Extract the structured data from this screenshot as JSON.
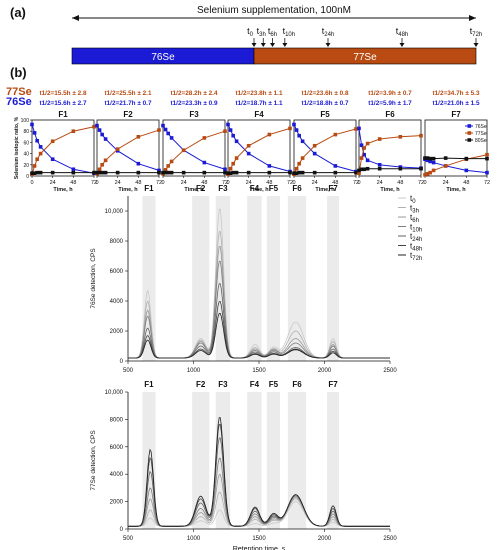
{
  "panel_a_label": "(a)",
  "panel_b_label": "(b)",
  "supplementation": {
    "title": "Selenium supplementation, 100nM",
    "bar_left_label": "76Se",
    "bar_right_label": "77Se",
    "colors": {
      "left": "#1b1bd6",
      "right": "#b84a12"
    },
    "timepoints": [
      {
        "base": "t",
        "sub": "0"
      },
      {
        "base": "t",
        "sub": "3h"
      },
      {
        "base": "t",
        "sub": "6h"
      },
      {
        "base": "t",
        "sub": "10h"
      },
      {
        "base": "t",
        "sub": "24h"
      },
      {
        "base": "t",
        "sub": "48h"
      },
      {
        "base": "t",
        "sub": "72h"
      }
    ]
  },
  "halflife": {
    "row_77_label": "77Se",
    "row_76_label": "76Se",
    "colors": {
      "se77": "#b84a12",
      "se76": "#1b1bd6"
    },
    "values_77": [
      "t1/2=15.5h ± 2.8",
      "t1/2=25.5h ± 2.1",
      "t1/2=28.2h ± 2.4",
      "t1/2=23.8h ± 1.1",
      "t1/2=23.6h ± 0.8",
      "t1/2=3.9h ± 0.7",
      "t1/2=34.7h ± 5.3"
    ],
    "values_76": [
      "t1/2=15.6h ± 2.7",
      "t1/2=21.7h ± 0.7",
      "t1/2=23.3h ± 0.9",
      "t1/2=18.7h ± 1.1",
      "t1/2=18.8h ± 0.7",
      "t1/2=5.9h ± 1.7",
      "t1/2=21.0h ± 1.5"
    ]
  },
  "chart_data": [
    {
      "type": "line",
      "ylabel": "Selenium isotopic ratio, %",
      "xlabel": "Time, h",
      "xticks": [
        0,
        24,
        48,
        72
      ],
      "ylim": [
        0,
        100
      ],
      "yticks": [
        0,
        20,
        40,
        60,
        80,
        100
      ],
      "x": [
        0,
        3,
        6,
        10,
        24,
        48,
        72
      ],
      "legend": [
        "76Se",
        "77Se",
        "80Se"
      ],
      "series_colors": [
        "#1b1bd6",
        "#b84a12",
        "#111111"
      ],
      "panels": [
        {
          "title": "F1",
          "series": [
            {
              "values": [
                92,
                77,
                63,
                52,
                30,
                12,
                5
              ]
            },
            {
              "values": [
                3,
                18,
                30,
                40,
                62,
                80,
                88
              ]
            },
            {
              "values": [
                5,
                5,
                6,
                6,
                6,
                6,
                6
              ]
            }
          ]
        },
        {
          "title": "F2",
          "series": [
            {
              "values": [
                90,
                82,
                74,
                66,
                45,
                22,
                10
              ]
            },
            {
              "values": [
                4,
                12,
                20,
                28,
                48,
                70,
                82
              ]
            },
            {
              "values": [
                6,
                6,
                6,
                6,
                6,
                6,
                6
              ]
            }
          ]
        },
        {
          "title": "F3",
          "series": [
            {
              "values": [
                90,
                83,
                76,
                68,
                46,
                24,
                12
              ]
            },
            {
              "values": [
                4,
                11,
                18,
                26,
                46,
                68,
                80
              ]
            },
            {
              "values": [
                6,
                6,
                6,
                6,
                6,
                6,
                6
              ]
            }
          ]
        },
        {
          "title": "F4",
          "series": [
            {
              "values": [
                92,
                82,
                72,
                62,
                40,
                18,
                8
              ]
            },
            {
              "values": [
                3,
                13,
                22,
                32,
                54,
                74,
                85
              ]
            },
            {
              "values": [
                5,
                5,
                6,
                6,
                6,
                6,
                6
              ]
            }
          ]
        },
        {
          "title": "F5",
          "series": [
            {
              "values": [
                92,
                82,
                72,
                62,
                40,
                18,
                8
              ]
            },
            {
              "values": [
                3,
                13,
                22,
                32,
                54,
                74,
                84
              ]
            },
            {
              "values": [
                5,
                5,
                6,
                6,
                6,
                6,
                6
              ]
            }
          ]
        },
        {
          "title": "F6",
          "series": [
            {
              "values": [
                85,
                55,
                38,
                28,
                20,
                16,
                14
              ]
            },
            {
              "values": [
                5,
                32,
                50,
                58,
                66,
                70,
                72
              ]
            },
            {
              "values": [
                10,
                12,
                12,
                13,
                13,
                13,
                13
              ]
            }
          ]
        },
        {
          "title": "F7",
          "series": [
            {
              "values": [
                30,
                28,
                26,
                24,
                18,
                10,
                6
              ]
            },
            {
              "values": [
                2,
                4,
                6,
                10,
                18,
                30,
                38
              ]
            },
            {
              "values": [
                32,
                32,
                31,
                31,
                32,
                31,
                31
              ]
            }
          ]
        }
      ]
    },
    {
      "type": "line",
      "ylabel": "76Se detection, CPS",
      "xlabel": "",
      "xlim": [
        500,
        2500
      ],
      "xticks": [
        500,
        1000,
        1500,
        2000,
        2500
      ],
      "ylim": [
        0,
        11000
      ],
      "yticks": [
        0,
        2000,
        4000,
        6000,
        8000,
        10000
      ],
      "ytick_labels": [
        "0",
        "2000",
        "4000",
        "6000",
        "8000",
        "10,000"
      ],
      "fraction_labels": [
        "F1",
        "F2",
        "F3",
        "F4",
        "F5",
        "F6",
        "F7"
      ],
      "fraction_bands": [
        [
          610,
          710
        ],
        [
          990,
          1120
        ],
        [
          1170,
          1280
        ],
        [
          1410,
          1520
        ],
        [
          1560,
          1660
        ],
        [
          1720,
          1860
        ],
        [
          2020,
          2110
        ]
      ],
      "legend": [
        {
          "base": "t",
          "sub": "0"
        },
        {
          "base": "t",
          "sub": "3h"
        },
        {
          "base": "t",
          "sub": "6h"
        },
        {
          "base": "t",
          "sub": "10h"
        },
        {
          "base": "t",
          "sub": "24h"
        },
        {
          "base": "t",
          "sub": "48h"
        },
        {
          "base": "t",
          "sub": "72h"
        }
      ],
      "peaks": [
        {
          "center": 650,
          "width": 25
        },
        {
          "center": 1055,
          "width": 40
        },
        {
          "center": 1200,
          "width": 30
        },
        {
          "center": 1470,
          "width": 35
        },
        {
          "center": 1610,
          "width": 35
        },
        {
          "center": 1780,
          "width": 60
        },
        {
          "center": 2065,
          "width": 25
        }
      ],
      "amplitudes": [
        [
          4500,
          1300,
          10000,
          900,
          700,
          2400,
          1300
        ],
        [
          3800,
          1200,
          8500,
          700,
          600,
          1800,
          1100
        ],
        [
          3200,
          1100,
          7500,
          600,
          550,
          1300,
          900
        ],
        [
          2800,
          1000,
          6500,
          500,
          500,
          1000,
          800
        ],
        [
          2000,
          800,
          5000,
          400,
          400,
          700,
          600
        ],
        [
          1500,
          600,
          3800,
          300,
          300,
          600,
          450
        ],
        [
          1200,
          500,
          3000,
          250,
          250,
          550,
          350
        ]
      ],
      "baseline": 200
    },
    {
      "type": "line",
      "ylabel": "77Se detection, CPS",
      "xlabel": "Retention time, s",
      "xlim": [
        500,
        2500
      ],
      "xticks": [
        500,
        1000,
        1500,
        2000,
        2500
      ],
      "ylim": [
        0,
        10000
      ],
      "yticks": [
        0,
        2000,
        4000,
        6000,
        8000,
        10000
      ],
      "ytick_labels": [
        "0",
        "2000",
        "4000",
        "6000",
        "8000",
        "10,000"
      ],
      "fraction_labels": [
        "F1",
        "F2",
        "F3",
        "F4",
        "F5",
        "F6",
        "F7"
      ],
      "fraction_bands": [
        [
          610,
          710
        ],
        [
          990,
          1120
        ],
        [
          1170,
          1280
        ],
        [
          1410,
          1520
        ],
        [
          1560,
          1660
        ],
        [
          1720,
          1860
        ],
        [
          2020,
          2110
        ]
      ],
      "peaks": [
        {
          "center": 670,
          "width": 25
        },
        {
          "center": 1055,
          "width": 40
        },
        {
          "center": 1200,
          "width": 30
        },
        {
          "center": 1470,
          "width": 35
        },
        {
          "center": 1610,
          "width": 35
        },
        {
          "center": 1780,
          "width": 60
        },
        {
          "center": 2065,
          "width": 25
        }
      ],
      "amplitudes": [
        [
          600,
          400,
          1200,
          200,
          200,
          1800,
          300
        ],
        [
          1200,
          700,
          2500,
          500,
          400,
          2000,
          500
        ],
        [
          2000,
          1000,
          3800,
          700,
          500,
          2100,
          700
        ],
        [
          2800,
          1300,
          5000,
          900,
          600,
          2200,
          900
        ],
        [
          4000,
          1700,
          6500,
          1100,
          700,
          2300,
          1100
        ],
        [
          5000,
          2000,
          7500,
          1300,
          800,
          2300,
          1300
        ],
        [
          5600,
          2200,
          8000,
          1400,
          900,
          2300,
          1500
        ]
      ],
      "baseline": 200
    }
  ]
}
